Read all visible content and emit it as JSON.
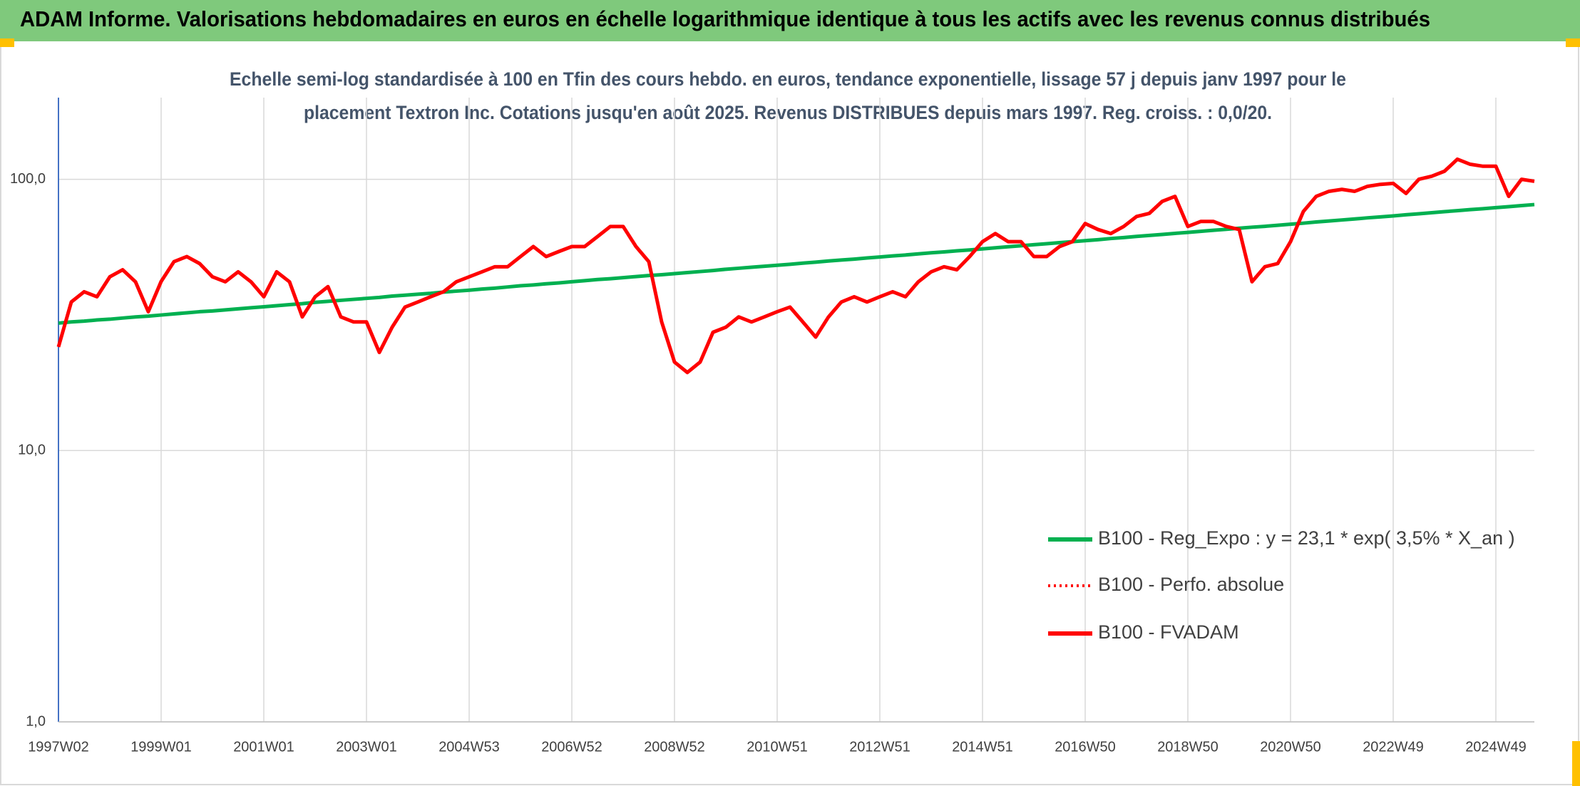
{
  "header": "ADAM Informe. Valorisations hebdomadaires en euros en échelle logarithmique identique à tous les actifs avec les revenus connus distribués",
  "chart_data": {
    "type": "line",
    "title": [
      "Echelle semi-log standardisée à 100 en Tfin des cours hebdo. en euros, tendance exponentielle, lissage 57 j depuis janv 1997 pour le",
      "placement Textron Inc. Cotations jusqu'en août 2025. Revenus DISTRIBUES depuis mars 1997. Reg. croiss. : 0,0/20."
    ],
    "yscale": "log",
    "grid": true,
    "legend": "lower right",
    "ylim": [
      1,
      200
    ],
    "yticks": [
      {
        "value": 1,
        "label": "1,0"
      },
      {
        "value": 10,
        "label": "10,0"
      },
      {
        "value": 100,
        "label": "100,0"
      }
    ],
    "categories": [
      "1997W02",
      null,
      null,
      null,
      null,
      null,
      null,
      null,
      "1999W01",
      null,
      null,
      null,
      null,
      null,
      null,
      null,
      "2001W01",
      null,
      null,
      null,
      null,
      null,
      null,
      null,
      "2003W01",
      null,
      null,
      null,
      null,
      null,
      null,
      null,
      "2004W53",
      null,
      null,
      null,
      null,
      null,
      null,
      null,
      "2006W52",
      null,
      null,
      null,
      null,
      null,
      null,
      null,
      "2008W52",
      null,
      null,
      null,
      null,
      null,
      null,
      null,
      "2010W51",
      null,
      null,
      null,
      null,
      null,
      null,
      null,
      "2012W51",
      null,
      null,
      null,
      null,
      null,
      null,
      null,
      "2014W51",
      null,
      null,
      null,
      null,
      null,
      null,
      null,
      "2016W50",
      null,
      null,
      null,
      null,
      null,
      null,
      null,
      "2018W50",
      null,
      null,
      null,
      null,
      null,
      null,
      null,
      "2020W50",
      null,
      null,
      null,
      null,
      null,
      null,
      null,
      "2022W49",
      null,
      null,
      null,
      null,
      null,
      null,
      null,
      "2024W49",
      null,
      null,
      null
    ],
    "series": [
      {
        "name": "B100 - Reg_Expo : y = 23,1 * exp( 3,5% *  X_an )",
        "color": "#00b050",
        "style": "solid",
        "values": [
          29.5,
          29.8,
          30.0,
          30.3,
          30.5,
          30.8,
          31.1,
          31.3,
          31.6,
          31.9,
          32.2,
          32.5,
          32.7,
          33.0,
          33.3,
          33.6,
          33.9,
          34.2,
          34.5,
          34.8,
          35.2,
          35.5,
          35.8,
          36.1,
          36.4,
          36.7,
          37.1,
          37.4,
          37.7,
          38.0,
          38.4,
          38.7,
          39.0,
          39.4,
          39.7,
          40.1,
          40.5,
          40.8,
          41.2,
          41.5,
          41.9,
          42.3,
          42.7,
          43.0,
          43.4,
          43.8,
          44.2,
          44.5,
          44.9,
          45.3,
          45.7,
          46.1,
          46.6,
          47.0,
          47.4,
          47.8,
          48.2,
          48.6,
          49.1,
          49.5,
          50.0,
          50.4,
          50.8,
          51.3,
          51.7,
          52.2,
          52.6,
          53.1,
          53.6,
          54.0,
          54.5,
          54.9,
          55.4,
          55.9,
          56.4,
          56.9,
          57.4,
          57.9,
          58.4,
          58.9,
          59.4,
          59.9,
          60.5,
          61.0,
          61.6,
          62.1,
          62.6,
          63.2,
          63.7,
          64.3,
          64.9,
          65.4,
          66.0,
          66.6,
          67.1,
          67.7,
          68.3,
          68.9,
          69.6,
          70.2,
          70.8,
          71.4,
          72.1,
          72.7,
          73.3,
          74.0,
          74.6,
          75.3,
          76.0,
          76.6,
          77.3,
          77.9,
          78.6,
          79.3,
          80.0,
          80.7
        ]
      },
      {
        "name": "B100 - Perfo. absolue",
        "color": "#ff0000",
        "style": "dotted",
        "values": [
          24.1,
          35.3,
          38.5,
          36.9,
          43.7,
          46.4,
          41.9,
          32.5,
          42.0,
          49.7,
          51.9,
          48.9,
          43.7,
          41.9,
          45.6,
          41.9,
          36.9,
          45.6,
          41.9,
          31.1,
          36.9,
          40.2,
          31.1,
          29.8,
          29.8,
          23.0,
          28.5,
          33.8,
          35.3,
          36.9,
          38.5,
          41.9,
          43.7,
          45.6,
          47.6,
          47.6,
          51.9,
          56.5,
          51.9,
          54.2,
          56.5,
          56.5,
          61.5,
          67.0,
          67.0,
          56.5,
          49.7,
          29.8,
          21.2,
          19.4,
          21.2,
          27.3,
          28.5,
          31.1,
          29.8,
          31.1,
          32.5,
          33.8,
          29.8,
          26.2,
          31.1,
          35.3,
          36.9,
          35.3,
          36.9,
          38.5,
          36.9,
          41.9,
          45.6,
          47.6,
          46.4,
          51.9,
          58.9,
          63.1,
          58.9,
          58.9,
          51.9,
          51.9,
          56.5,
          58.9,
          68.7,
          65.3,
          63.1,
          67.0,
          72.9,
          74.9,
          82.9,
          86.5,
          67.0,
          69.9,
          69.9,
          67.0,
          65.3,
          41.9,
          47.6,
          48.9,
          58.9,
          76.1,
          86.5,
          90.3,
          91.8,
          90.3,
          94.2,
          95.8,
          96.6,
          88.7,
          100,
          102.6,
          107.1,
          118.6,
          113.6,
          111.7,
          111.7,
          86.5,
          100,
          98.3
        ]
      },
      {
        "name": "B100 - FVADAM",
        "color": "#ff0000",
        "style": "solid",
        "values": [
          24.1,
          35.3,
          38.5,
          36.9,
          43.7,
          46.4,
          41.9,
          32.5,
          42.0,
          49.7,
          51.9,
          48.9,
          43.7,
          41.9,
          45.6,
          41.9,
          36.9,
          45.6,
          41.9,
          31.1,
          36.9,
          40.2,
          31.1,
          29.8,
          29.8,
          23.0,
          28.5,
          33.8,
          35.3,
          36.9,
          38.5,
          41.9,
          43.7,
          45.6,
          47.6,
          47.6,
          51.9,
          56.5,
          51.9,
          54.2,
          56.5,
          56.5,
          61.5,
          67.0,
          67.0,
          56.5,
          49.7,
          29.8,
          21.2,
          19.4,
          21.2,
          27.3,
          28.5,
          31.1,
          29.8,
          31.1,
          32.5,
          33.8,
          29.8,
          26.2,
          31.1,
          35.3,
          36.9,
          35.3,
          36.9,
          38.5,
          36.9,
          41.9,
          45.6,
          47.6,
          46.4,
          51.9,
          58.9,
          63.1,
          58.9,
          58.9,
          51.9,
          51.9,
          56.5,
          58.9,
          68.7,
          65.3,
          63.1,
          67.0,
          72.9,
          74.9,
          82.9,
          86.5,
          67.0,
          69.9,
          69.9,
          67.0,
          65.3,
          41.9,
          47.6,
          48.9,
          58.9,
          76.1,
          86.5,
          90.3,
          91.8,
          90.3,
          94.2,
          95.8,
          96.6,
          88.7,
          100,
          102.6,
          107.1,
          118.6,
          113.6,
          111.7,
          111.7,
          86.5,
          100,
          98.3
        ]
      }
    ]
  }
}
